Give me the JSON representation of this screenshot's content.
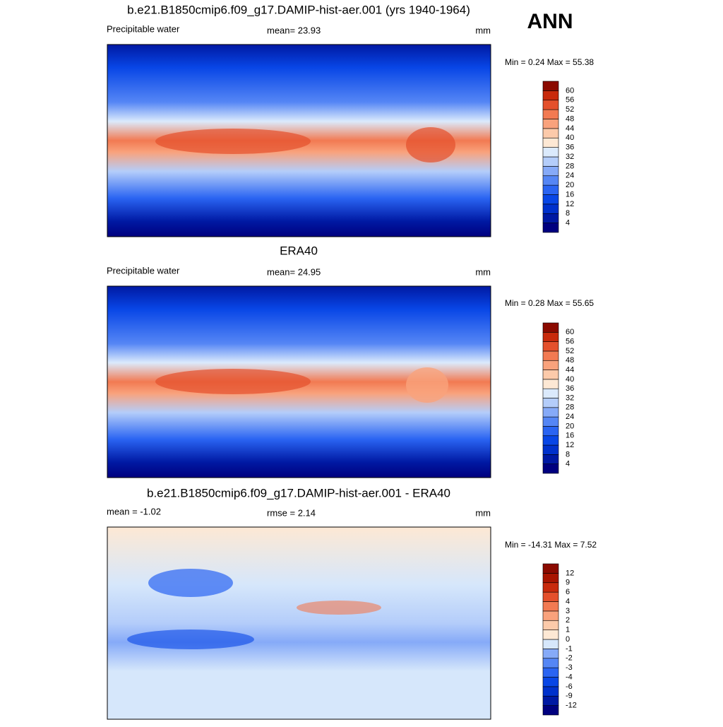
{
  "header": {
    "season": "ANN"
  },
  "panels": [
    {
      "title": "b.e21.B1850cmip6.f09_g17.DAMIP-hist-aer.001 (yrs 1940-1964)",
      "left": "Precipitable water",
      "center": "mean=  23.93",
      "units": "mm",
      "minmax": "Min =   0.24 Max =  55.38",
      "colorbar": {
        "levels": [
          4,
          8,
          12,
          16,
          20,
          24,
          28,
          32,
          36,
          40,
          44,
          48,
          52,
          56,
          60
        ],
        "colors": [
          "#00007f",
          "#0019a3",
          "#0031cc",
          "#0846e6",
          "#2a64f2",
          "#5586f5",
          "#86aaf8",
          "#b4cdfa",
          "#dbeafc",
          "#fde8d4",
          "#fccaaa",
          "#f9a27c",
          "#f27a52",
          "#e4502c",
          "#c82a0c",
          "#8b0a00"
        ]
      }
    },
    {
      "title": "ERA40",
      "left": "Precipitable water",
      "center": "mean=  24.95",
      "units": "mm",
      "minmax": "Min =   0.28 Max =  55.65",
      "colorbar": {
        "levels": [
          4,
          8,
          12,
          16,
          20,
          24,
          28,
          32,
          36,
          40,
          44,
          48,
          52,
          56,
          60
        ],
        "colors": [
          "#00007f",
          "#0019a3",
          "#0031cc",
          "#0846e6",
          "#2a64f2",
          "#5586f5",
          "#86aaf8",
          "#b4cdfa",
          "#dbeafc",
          "#fde8d4",
          "#fccaaa",
          "#f9a27c",
          "#f27a52",
          "#e4502c",
          "#c82a0c",
          "#8b0a00"
        ]
      }
    },
    {
      "title": "b.e21.B1850cmip6.f09_g17.DAMIP-hist-aer.001 - ERA40",
      "left": "mean =  -1.02",
      "center": "rmse =   2.14",
      "units": "mm",
      "minmax": "Min = -14.31 Max =   7.52",
      "colorbar": {
        "levels": [
          -12,
          -9,
          -6,
          -4,
          -3,
          -2,
          -1,
          0,
          1,
          2,
          3,
          4,
          6,
          9,
          12
        ],
        "colors": [
          "#00007f",
          "#0019a3",
          "#0031cc",
          "#0846e6",
          "#2a64f2",
          "#5586f5",
          "#86aaf8",
          "#d6e7fb",
          "#fde8d4",
          "#fccaaa",
          "#f9a27c",
          "#f27a52",
          "#e4502c",
          "#c82a0c",
          "#a81400",
          "#8b0a00"
        ]
      }
    }
  ]
}
